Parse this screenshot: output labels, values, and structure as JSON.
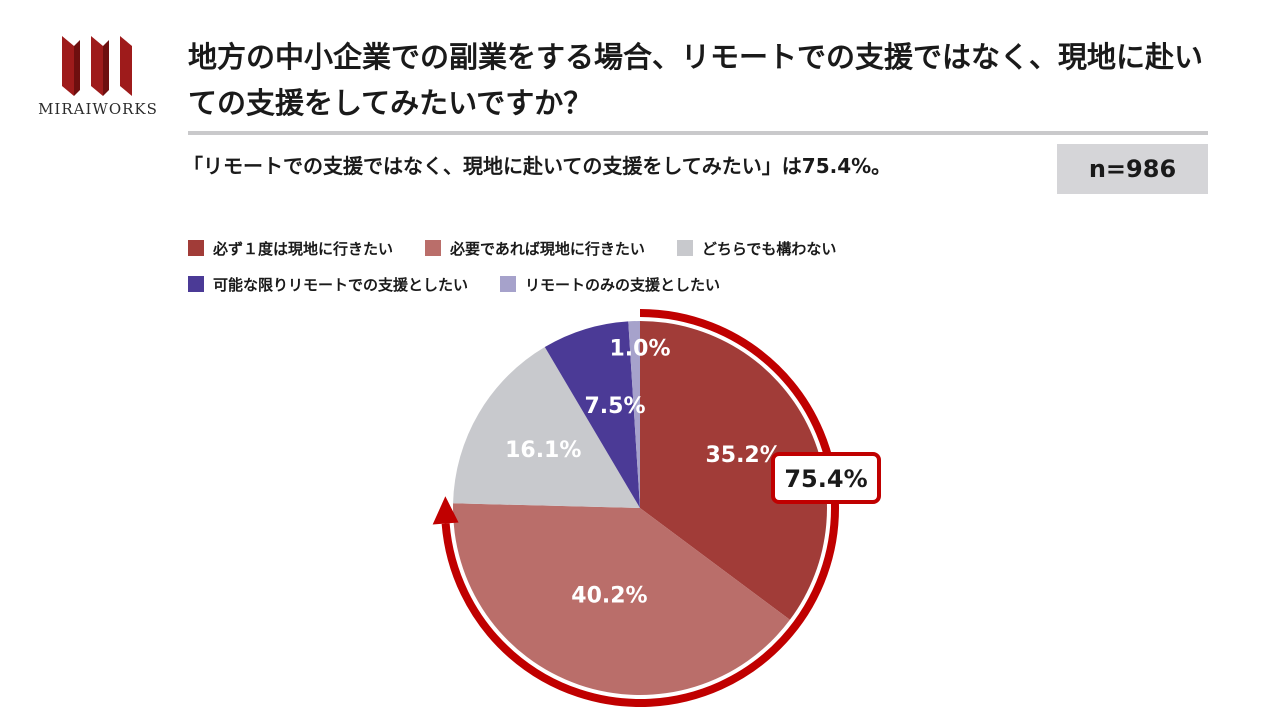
{
  "brand": {
    "name": "MiraiWorks",
    "logo_text": "MIRAIWORKS"
  },
  "title": "地方の中小企業での副業をする場合、リモートでの支援ではなく、現地に赴いての支援をしてみたいですか？",
  "subtitle": "「リモートでの支援ではなく、現地に赴いての支援をしてみたい」は75.4%。",
  "sample": "n=986",
  "callout": {
    "label": "75.4%",
    "color": "#c00000"
  },
  "chart_data": {
    "type": "pie",
    "start": "12 o'clock, clockwise",
    "slices": [
      {
        "label": "必ず１度は現地に行きたい",
        "value": 35.2,
        "display": "35.2%",
        "color": "#a13c38"
      },
      {
        "label": "必要であれば現地に行きたい",
        "value": 40.2,
        "display": "40.2%",
        "color": "#ba6e6a"
      },
      {
        "label": "どちらでも構わない",
        "value": 16.1,
        "display": "16.1%",
        "color": "#c8c9cd"
      },
      {
        "label": "可能な限りリモートでの支援としたい",
        "value": 7.5,
        "display": "7.5%",
        "color": "#4b3a96"
      },
      {
        "label": "リモートのみの支援としたい",
        "value": 1.0,
        "display": "1.0%",
        "color": "#a6a2cb"
      }
    ],
    "legend_position": "top-left"
  }
}
